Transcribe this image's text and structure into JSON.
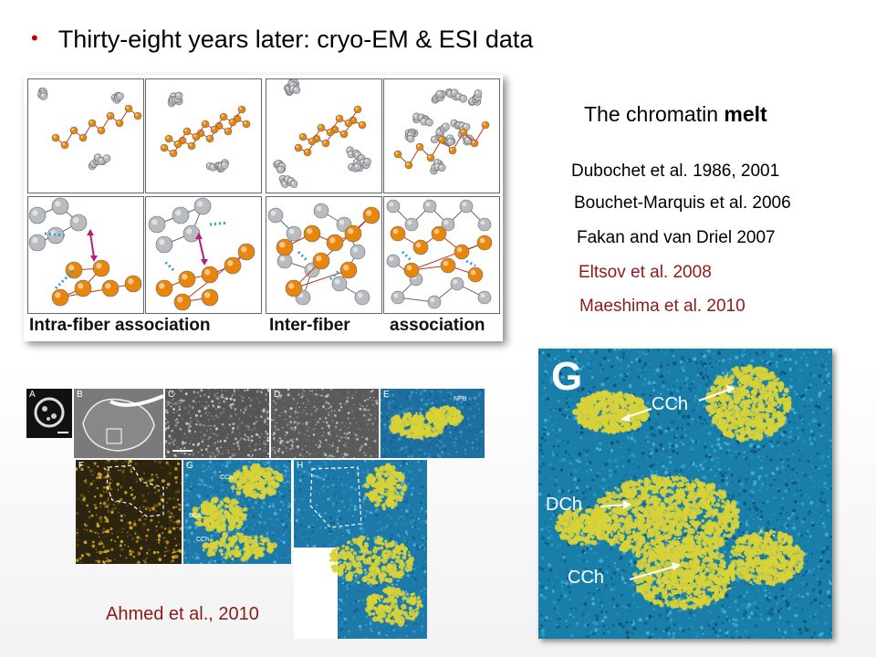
{
  "slide": {
    "bullet": "•",
    "title": "Thirty-eight years later: cryo-EM & ESI data",
    "heading_prefix": "The chromatin ",
    "heading_bold": "melt",
    "references": [
      {
        "text": "Dubochet et al. 1986, 2001",
        "color": "#000000"
      },
      {
        "text": "Bouchet-Marquis et al. 2006",
        "color": "#000000"
      },
      {
        "text": "Fakan and van Driel 2007",
        "color": "#000000"
      },
      {
        "text": "Eltsov et al. 2008",
        "color": "#8b1a1a"
      },
      {
        "text": "Maeshima et al. 2010",
        "color": "#8b1a1a"
      }
    ],
    "credit": "Ahmed et al., 2010",
    "credit_color": "#8b1a1a"
  },
  "fiber_figure": {
    "caption_left": "Intra-fiber association",
    "caption_mid": "Inter-fiber",
    "caption_right": "association",
    "colors": {
      "nucleosome_orange": "#e8860c",
      "nucleosome_gray": "#b8bcc0",
      "linker_red": "#c0341a",
      "contact_blue": "#2aa0d8",
      "arrow_magenta": "#b0207a"
    }
  },
  "esi_figure": {
    "panel_labels": [
      "A",
      "B",
      "C",
      "D",
      "E",
      "F",
      "G",
      "H"
    ],
    "small_labels": {
      "npb": "NPB",
      "cch1": "CCh",
      "dch": "DCh",
      "cch2": "CCh"
    }
  },
  "large_panel": {
    "letter": "G",
    "labels": [
      "CCh",
      "DCh",
      "CCh"
    ],
    "colors": {
      "background": "#1a7fa8",
      "chromatin": "#d8d23a"
    }
  }
}
